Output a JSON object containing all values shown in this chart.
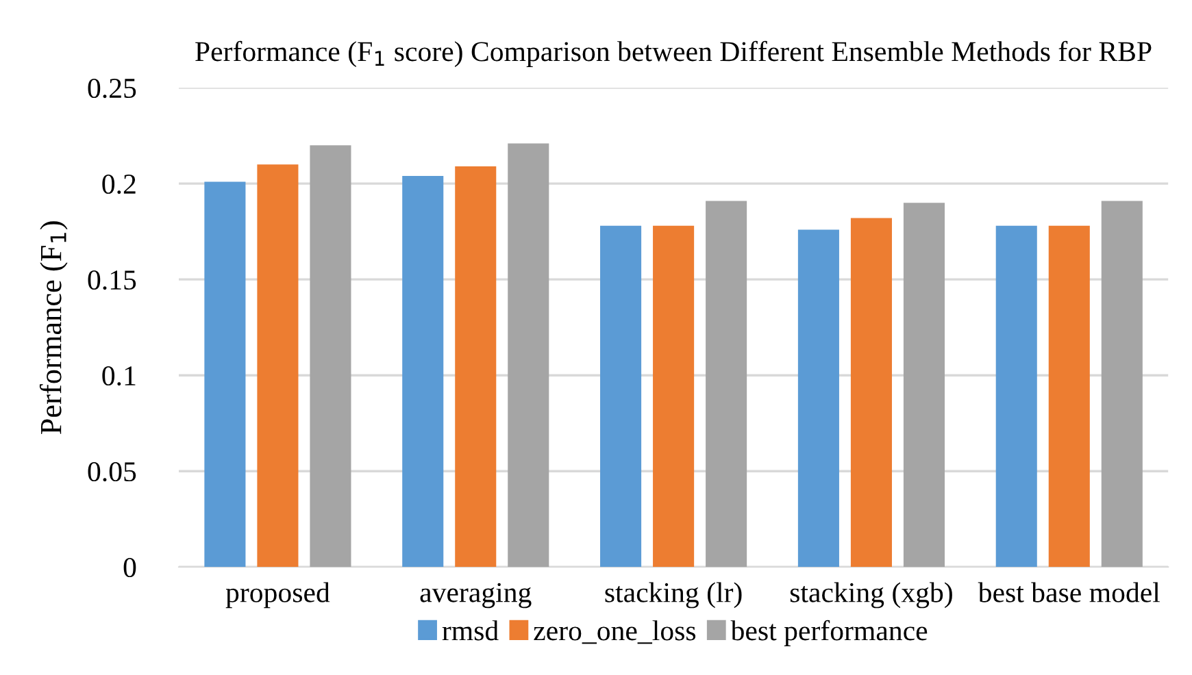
{
  "chart_data": {
    "type": "bar",
    "title": "Performance (F$_{1}$ score) Comparison between Different Ensemble Methods for RBP",
    "ylabel": "Performance (F$_{1}$)",
    "categories": [
      "proposed",
      "averaging",
      "stacking (lr)",
      "stacking (xgb)",
      "best base model"
    ],
    "series": [
      {
        "name": "rmsd",
        "color": "#5b9bd5",
        "values": [
          0.201,
          0.204,
          0.178,
          0.176,
          0.178
        ]
      },
      {
        "name": "zero_one_loss",
        "color": "#ed7d31",
        "values": [
          0.21,
          0.209,
          0.178,
          0.182,
          0.178
        ]
      },
      {
        "name": "best performance",
        "color": "#a5a5a5",
        "values": [
          0.22,
          0.221,
          0.191,
          0.19,
          0.191
        ]
      }
    ],
    "ylim": [
      0,
      0.25
    ],
    "yticks": [
      0,
      0.05,
      0.1,
      0.15,
      0.2,
      0.25
    ],
    "grid": "y",
    "legend": "bottom"
  }
}
